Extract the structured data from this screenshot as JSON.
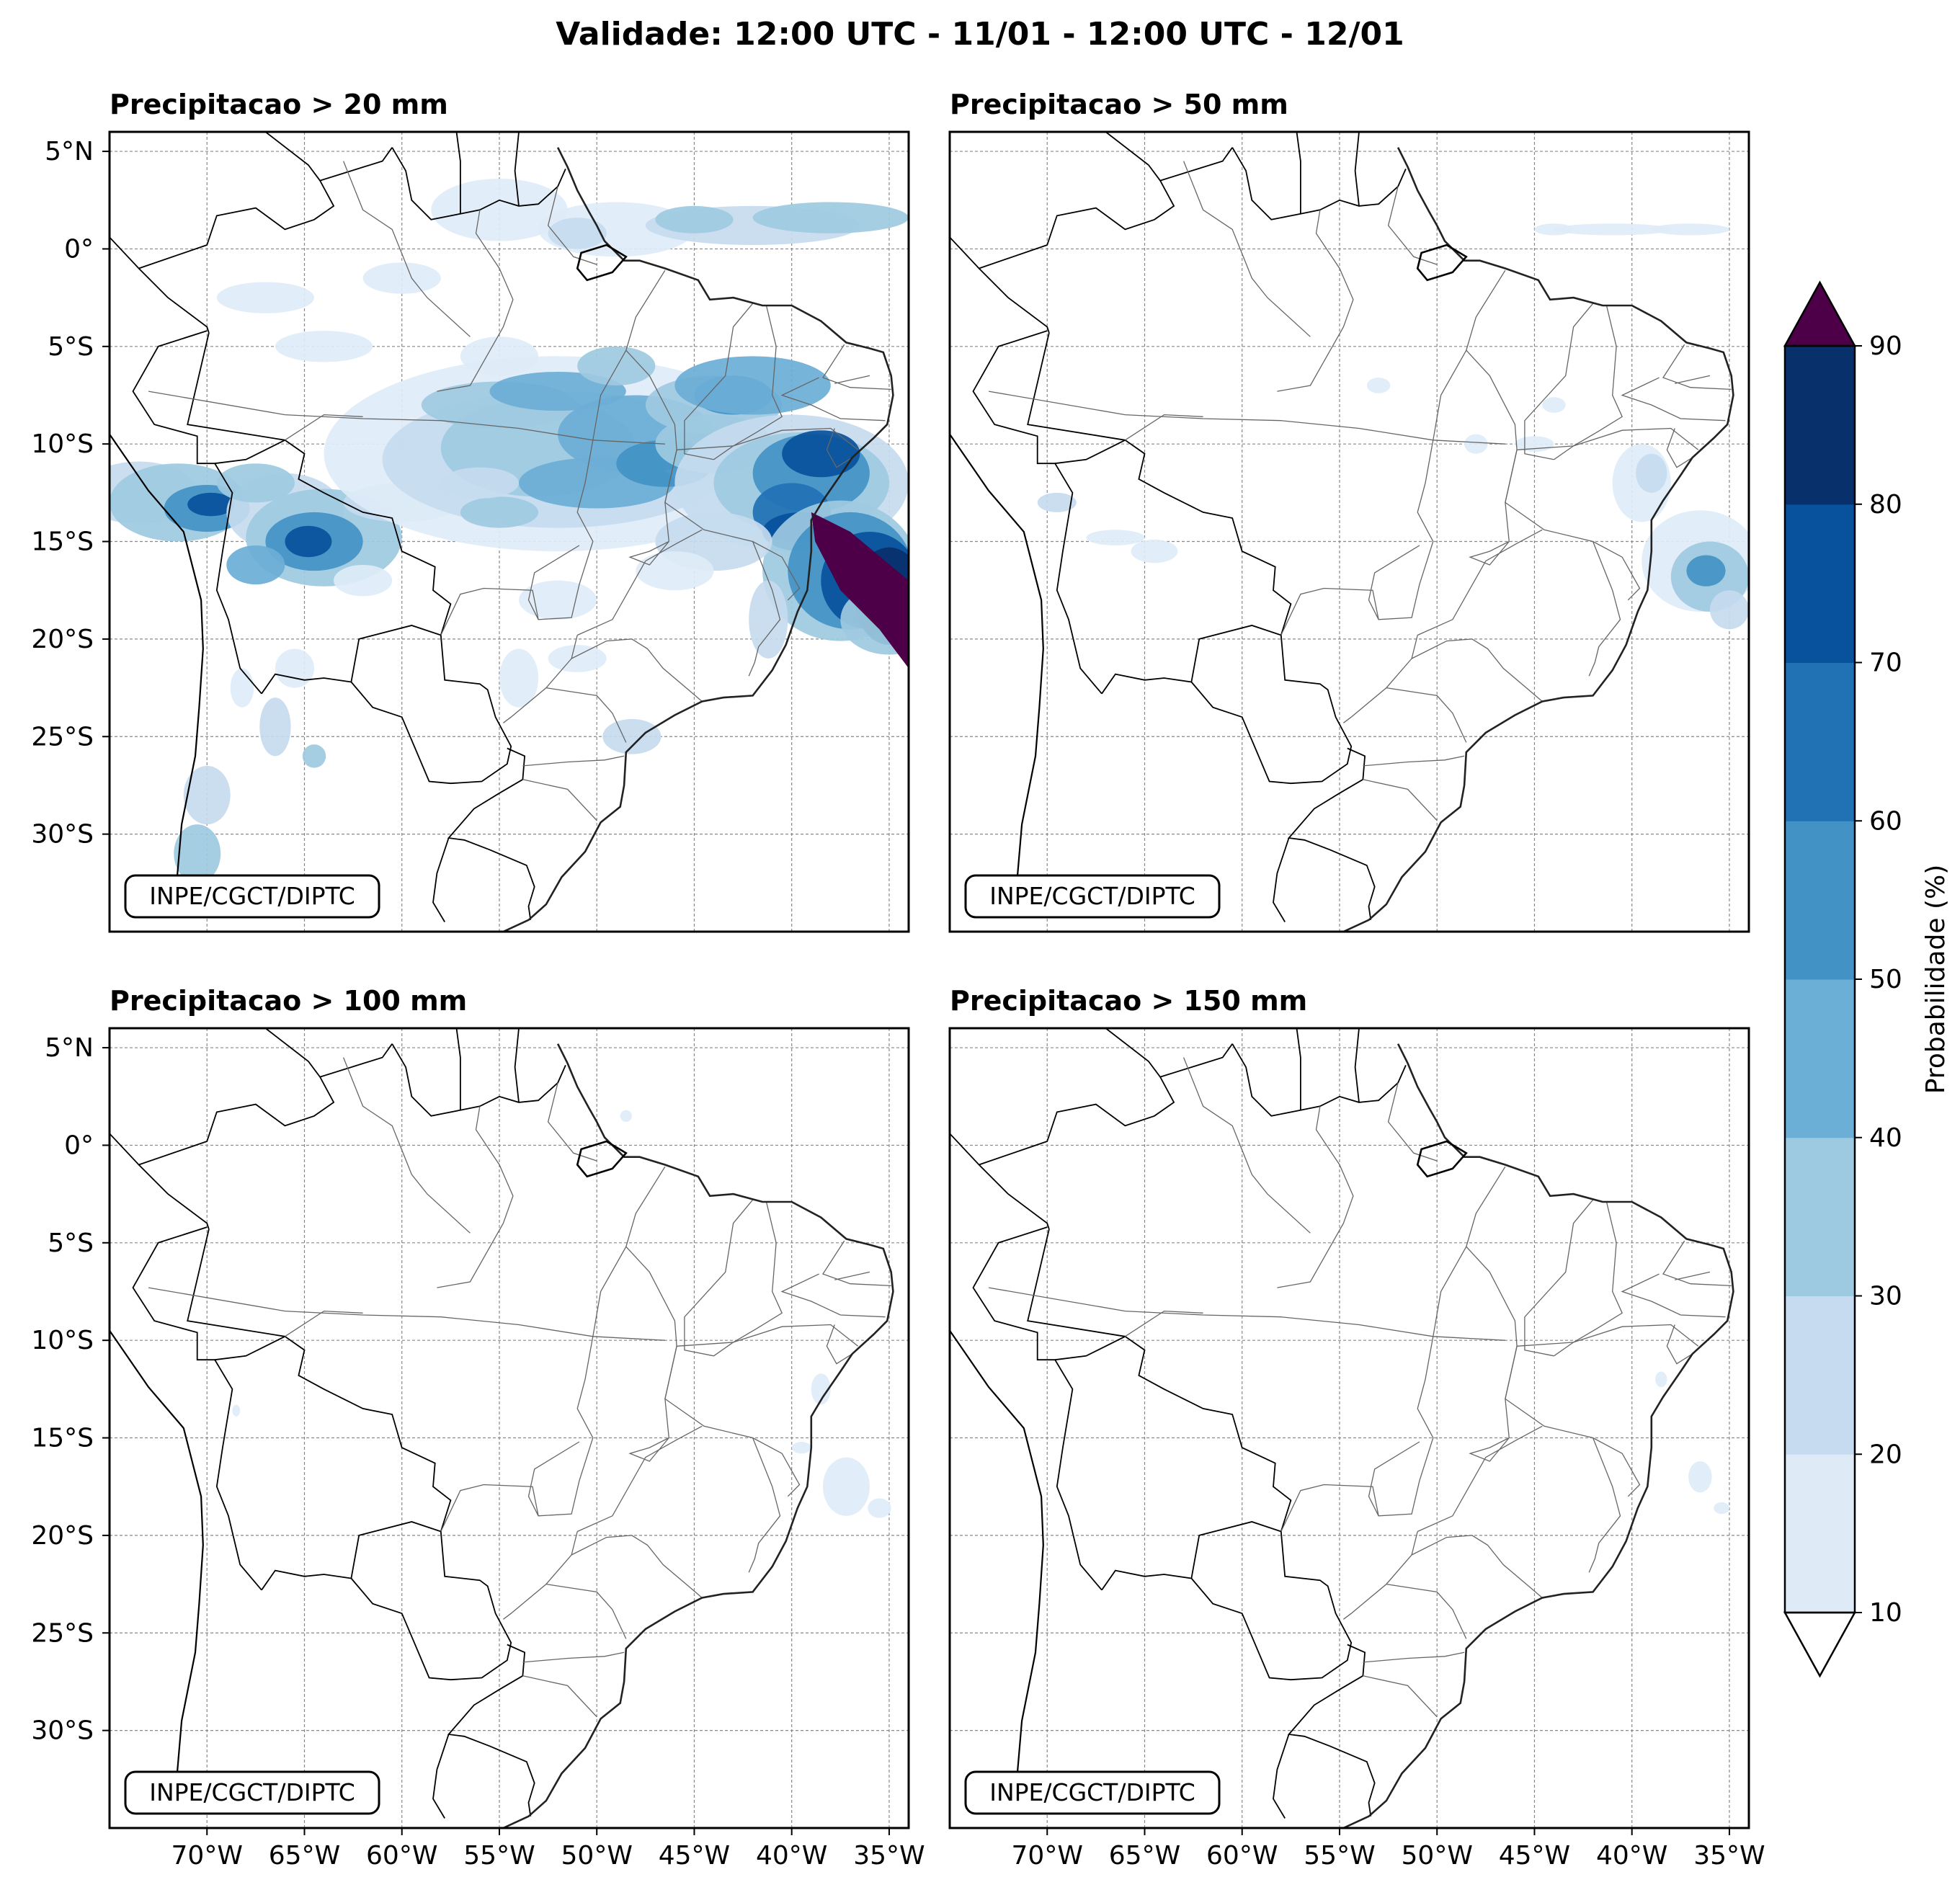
{
  "figure": {
    "title": "Validade: 12:00 UTC - 11/01 - 12:00 UTC - 12/01"
  },
  "panels": [
    {
      "title": "Precipitacao > 20 mm",
      "credit": "INPE/CGCT/DIPTC",
      "show_y_ticks": true,
      "show_x_ticks": false
    },
    {
      "title": "Precipitacao > 50 mm",
      "credit": "INPE/CGCT/DIPTC",
      "show_y_ticks": false,
      "show_x_ticks": false
    },
    {
      "title": "Precipitacao > 100 mm",
      "credit": "INPE/CGCT/DIPTC",
      "show_y_ticks": true,
      "show_x_ticks": true
    },
    {
      "title": "Precipitacao > 150 mm",
      "credit": "INPE/CGCT/DIPTC",
      "show_y_ticks": false,
      "show_x_ticks": true
    }
  ],
  "map": {
    "lon_range": [
      -75,
      -34
    ],
    "lat_range": [
      -35,
      6
    ],
    "grid": "dashed",
    "x_ticks": [
      {
        "lon": -70,
        "label": "70°W"
      },
      {
        "lon": -65,
        "label": "65°W"
      },
      {
        "lon": -60,
        "label": "60°W"
      },
      {
        "lon": -55,
        "label": "55°W"
      },
      {
        "lon": -50,
        "label": "50°W"
      },
      {
        "lon": -45,
        "label": "45°W"
      },
      {
        "lon": -40,
        "label": "40°W"
      },
      {
        "lon": -35,
        "label": "35°W"
      }
    ],
    "y_ticks": [
      {
        "lat": 5,
        "label": "5°N"
      },
      {
        "lat": 0,
        "label": "0°"
      },
      {
        "lat": -5,
        "label": "5°S"
      },
      {
        "lat": -10,
        "label": "10°S"
      },
      {
        "lat": -15,
        "label": "15°S"
      },
      {
        "lat": -20,
        "label": "20°S"
      },
      {
        "lat": -25,
        "label": "25°S"
      },
      {
        "lat": -30,
        "label": "30°S"
      }
    ]
  },
  "colorbar": {
    "label": "Probabilidade (%)",
    "ticks": [
      "10",
      "20",
      "30",
      "40",
      "50",
      "60",
      "70",
      "80",
      "90"
    ],
    "colors": [
      "#deebf7",
      "#c6dbef",
      "#9ecae1",
      "#6baed6",
      "#4292c6",
      "#2171b5",
      "#08519c",
      "#08306b"
    ],
    "extend_min_color": "#ffffff",
    "extend_max_color": "#4d0047"
  }
}
